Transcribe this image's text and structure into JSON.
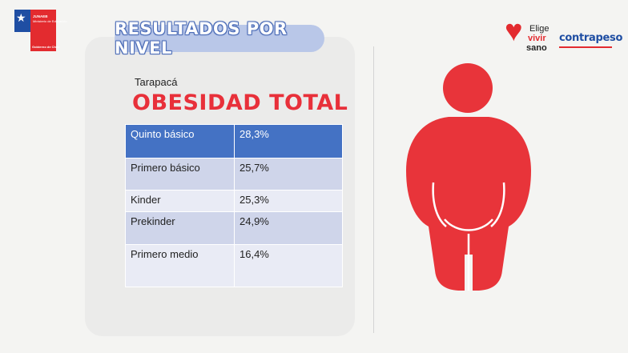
{
  "header": {
    "title": "RESULTADOS POR NIVEL",
    "gov_logo_line1": "JUNAEB",
    "gov_logo_line2": "Ministerio de Educación",
    "gov_logo_line3": "Gobierno de Chile"
  },
  "brands": {
    "elige_line1": "Elige",
    "elige_line2": "vivir",
    "elige_line3": "sano",
    "contrapeso": "contrapeso"
  },
  "section": {
    "region": "Tarapacá",
    "metric": "OBESIDAD TOTAL"
  },
  "table": {
    "rows": [
      {
        "level": "Quinto básico",
        "value": "28,3%"
      },
      {
        "level": "Primero básico",
        "value": "25,7%"
      },
      {
        "level": "Kinder",
        "value": "25,3%"
      },
      {
        "level": "Prekinder",
        "value": "24,9%"
      },
      {
        "level": "Primero medio",
        "value": "16,4%"
      }
    ]
  },
  "colors": {
    "accent_red": "#e8303a",
    "header_blue": "#4472c4",
    "figure_red": "#e8343a"
  },
  "icons": {
    "figure": "obese-person-icon",
    "heart": "heart-icon"
  }
}
